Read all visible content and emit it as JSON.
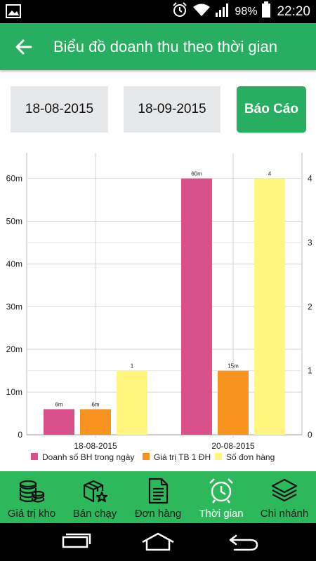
{
  "status_bar": {
    "battery_text": "98%",
    "time": "22:20",
    "icons": [
      "image-icon",
      "alarm-icon",
      "wifi-icon",
      "signal-icon",
      "battery-icon"
    ]
  },
  "app_bar": {
    "title": "Biểu đồ doanh thu theo thời gian",
    "back_icon": "arrow-left-icon"
  },
  "filters": {
    "date_from": "18-08-2015",
    "date_to": "18-09-2015",
    "report_button": "Báo Cáo"
  },
  "chart_data": {
    "type": "bar",
    "categories": [
      "18-08-2015",
      "20-08-2015"
    ],
    "series": [
      {
        "name": "Doanh số BH trong ngày",
        "axis": "left",
        "color": "#d9508a",
        "values": [
          6,
          60
        ],
        "labels": [
          "6m",
          "60m"
        ]
      },
      {
        "name": "Giá trị TB 1 ĐH",
        "axis": "left",
        "color": "#f7931e",
        "values": [
          6,
          15
        ],
        "labels": [
          "6m",
          "15m"
        ]
      },
      {
        "name": "Số đơn hàng",
        "axis": "right",
        "color": "#fff57f",
        "values": [
          1,
          4
        ],
        "labels": [
          "1",
          "4"
        ]
      }
    ],
    "left_axis": {
      "ticks": [
        0,
        10,
        20,
        30,
        40,
        50,
        60
      ],
      "tick_labels": [
        "0",
        "10m",
        "20m",
        "30m",
        "40m",
        "50m",
        "60m"
      ],
      "ylim": [
        0,
        66
      ]
    },
    "right_axis": {
      "ticks": [
        0,
        1,
        2,
        3,
        4
      ],
      "tick_labels": [
        "0",
        "1",
        "2",
        "3",
        "4"
      ],
      "ylim": [
        0,
        4.4
      ]
    },
    "grid": true,
    "legend_position": "bottom"
  },
  "bottom_nav": {
    "items": [
      {
        "label": "Giá trị kho",
        "icon": "coins-stack-icon",
        "active": false
      },
      {
        "label": "Bán chạy",
        "icon": "box-star-icon",
        "active": false
      },
      {
        "label": "Đơn hàng",
        "icon": "document-icon",
        "active": false
      },
      {
        "label": "Thời gian",
        "icon": "alarm-clock-icon",
        "active": true
      },
      {
        "label": "Chi nhánh",
        "icon": "layers-icon",
        "active": false
      }
    ]
  },
  "system_nav": {
    "icons": [
      "recent-apps-icon",
      "home-icon",
      "back-icon"
    ]
  }
}
